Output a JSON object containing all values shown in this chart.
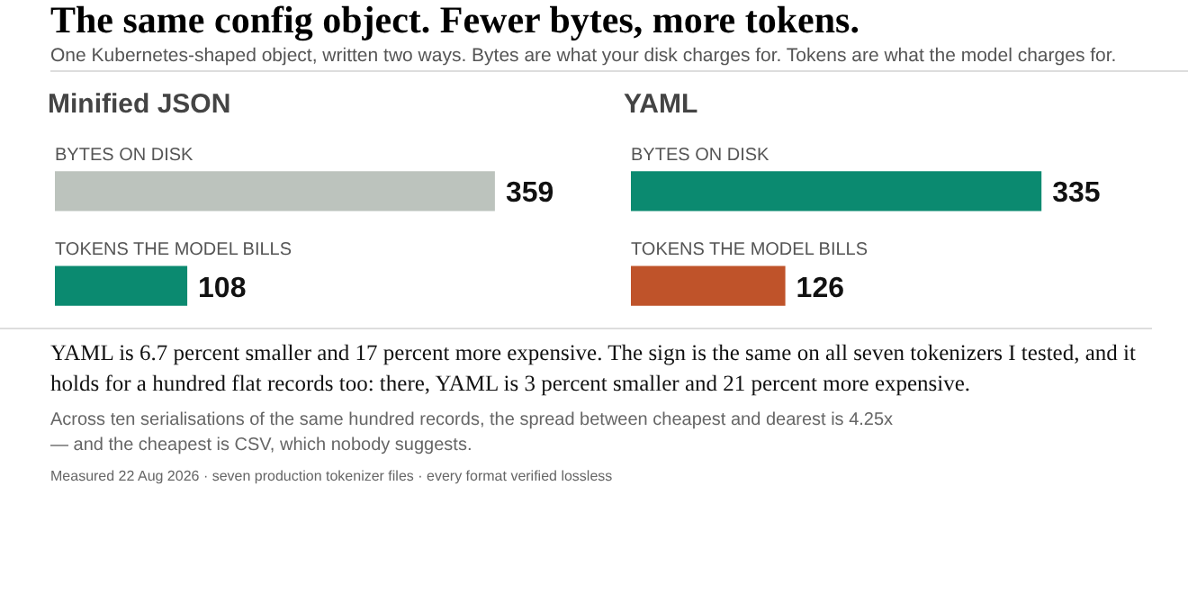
{
  "chart_data": [
    {
      "type": "other",
      "title": "The same config object. Fewer bytes, more tokens.",
      "subtitle": "One Kubernetes-shaped object, written two ways. Bytes are what your disk charges for. Tokens are what the model charges for."
    },
    {
      "type": "bar",
      "orientation": "horizontal",
      "title": "Minified JSON",
      "categories": [
        "BYTES ON DISK",
        "TOKENS THE MODEL BILLS"
      ],
      "values": [
        359,
        108
      ],
      "colors": [
        "#bcc3bd",
        "#0b8a70"
      ],
      "data_labels": true
    },
    {
      "type": "bar",
      "orientation": "horizontal",
      "title": "YAML",
      "categories": [
        "BYTES ON DISK",
        "TOKENS THE MODEL BILLS"
      ],
      "values": [
        335,
        126
      ],
      "colors": [
        "#0b8a70",
        "#bf532a"
      ],
      "data_labels": true
    },
    {
      "type": "other",
      "annotations": [
        "YAML is 6.7 percent smaller and 17 percent more expensive. The sign is the same on all seven tokenizers I tested, and it holds for a hundred flat records too: there, YAML is 3 percent smaller and 21 percent more expensive.",
        "Across ten serialisations of the same hundred records, the spread between cheapest and dearest is 4.25x — and the cheapest is CSV, which nobody suggests.",
        "Measured 22 Aug 2026 · seven production tokenizer files · every format verified lossless"
      ]
    }
  ]
}
